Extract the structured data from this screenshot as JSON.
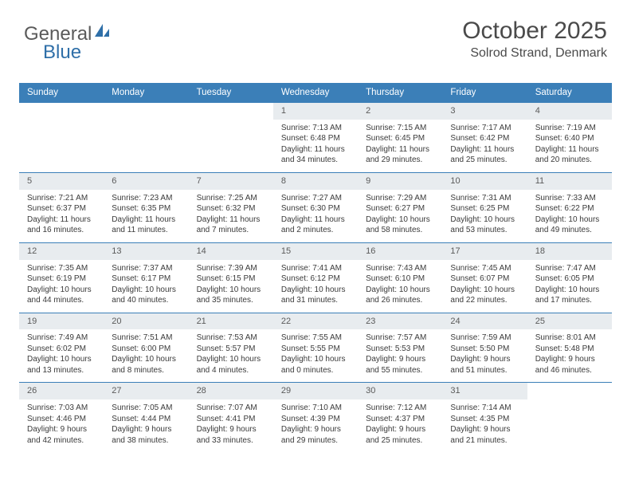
{
  "logo": {
    "text1": "General",
    "text2": "Blue"
  },
  "header": {
    "month": "October 2025",
    "location": "Solrod Strand, Denmark"
  },
  "colors": {
    "header_bg": "#3b7fb8",
    "header_text": "#ffffff",
    "num_bg": "#e8ecef",
    "border": "#3b7fb8",
    "text": "#3a3a3a"
  },
  "dayNames": [
    "Sunday",
    "Monday",
    "Tuesday",
    "Wednesday",
    "Thursday",
    "Friday",
    "Saturday"
  ],
  "weeks": [
    [
      {
        "empty": true
      },
      {
        "empty": true
      },
      {
        "empty": true
      },
      {
        "num": "1",
        "sunrise": "7:13 AM",
        "sunset": "6:48 PM",
        "dl1": "11 hours",
        "dl2": "and 34 minutes."
      },
      {
        "num": "2",
        "sunrise": "7:15 AM",
        "sunset": "6:45 PM",
        "dl1": "11 hours",
        "dl2": "and 29 minutes."
      },
      {
        "num": "3",
        "sunrise": "7:17 AM",
        "sunset": "6:42 PM",
        "dl1": "11 hours",
        "dl2": "and 25 minutes."
      },
      {
        "num": "4",
        "sunrise": "7:19 AM",
        "sunset": "6:40 PM",
        "dl1": "11 hours",
        "dl2": "and 20 minutes."
      }
    ],
    [
      {
        "num": "5",
        "sunrise": "7:21 AM",
        "sunset": "6:37 PM",
        "dl1": "11 hours",
        "dl2": "and 16 minutes."
      },
      {
        "num": "6",
        "sunrise": "7:23 AM",
        "sunset": "6:35 PM",
        "dl1": "11 hours",
        "dl2": "and 11 minutes."
      },
      {
        "num": "7",
        "sunrise": "7:25 AM",
        "sunset": "6:32 PM",
        "dl1": "11 hours",
        "dl2": "and 7 minutes."
      },
      {
        "num": "8",
        "sunrise": "7:27 AM",
        "sunset": "6:30 PM",
        "dl1": "11 hours",
        "dl2": "and 2 minutes."
      },
      {
        "num": "9",
        "sunrise": "7:29 AM",
        "sunset": "6:27 PM",
        "dl1": "10 hours",
        "dl2": "and 58 minutes."
      },
      {
        "num": "10",
        "sunrise": "7:31 AM",
        "sunset": "6:25 PM",
        "dl1": "10 hours",
        "dl2": "and 53 minutes."
      },
      {
        "num": "11",
        "sunrise": "7:33 AM",
        "sunset": "6:22 PM",
        "dl1": "10 hours",
        "dl2": "and 49 minutes."
      }
    ],
    [
      {
        "num": "12",
        "sunrise": "7:35 AM",
        "sunset": "6:19 PM",
        "dl1": "10 hours",
        "dl2": "and 44 minutes."
      },
      {
        "num": "13",
        "sunrise": "7:37 AM",
        "sunset": "6:17 PM",
        "dl1": "10 hours",
        "dl2": "and 40 minutes."
      },
      {
        "num": "14",
        "sunrise": "7:39 AM",
        "sunset": "6:15 PM",
        "dl1": "10 hours",
        "dl2": "and 35 minutes."
      },
      {
        "num": "15",
        "sunrise": "7:41 AM",
        "sunset": "6:12 PM",
        "dl1": "10 hours",
        "dl2": "and 31 minutes."
      },
      {
        "num": "16",
        "sunrise": "7:43 AM",
        "sunset": "6:10 PM",
        "dl1": "10 hours",
        "dl2": "and 26 minutes."
      },
      {
        "num": "17",
        "sunrise": "7:45 AM",
        "sunset": "6:07 PM",
        "dl1": "10 hours",
        "dl2": "and 22 minutes."
      },
      {
        "num": "18",
        "sunrise": "7:47 AM",
        "sunset": "6:05 PM",
        "dl1": "10 hours",
        "dl2": "and 17 minutes."
      }
    ],
    [
      {
        "num": "19",
        "sunrise": "7:49 AM",
        "sunset": "6:02 PM",
        "dl1": "10 hours",
        "dl2": "and 13 minutes."
      },
      {
        "num": "20",
        "sunrise": "7:51 AM",
        "sunset": "6:00 PM",
        "dl1": "10 hours",
        "dl2": "and 8 minutes."
      },
      {
        "num": "21",
        "sunrise": "7:53 AM",
        "sunset": "5:57 PM",
        "dl1": "10 hours",
        "dl2": "and 4 minutes."
      },
      {
        "num": "22",
        "sunrise": "7:55 AM",
        "sunset": "5:55 PM",
        "dl1": "10 hours",
        "dl2": "and 0 minutes."
      },
      {
        "num": "23",
        "sunrise": "7:57 AM",
        "sunset": "5:53 PM",
        "dl1": "9 hours",
        "dl2": "and 55 minutes."
      },
      {
        "num": "24",
        "sunrise": "7:59 AM",
        "sunset": "5:50 PM",
        "dl1": "9 hours",
        "dl2": "and 51 minutes."
      },
      {
        "num": "25",
        "sunrise": "8:01 AM",
        "sunset": "5:48 PM",
        "dl1": "9 hours",
        "dl2": "and 46 minutes."
      }
    ],
    [
      {
        "num": "26",
        "sunrise": "7:03 AM",
        "sunset": "4:46 PM",
        "dl1": "9 hours",
        "dl2": "and 42 minutes."
      },
      {
        "num": "27",
        "sunrise": "7:05 AM",
        "sunset": "4:44 PM",
        "dl1": "9 hours",
        "dl2": "and 38 minutes."
      },
      {
        "num": "28",
        "sunrise": "7:07 AM",
        "sunset": "4:41 PM",
        "dl1": "9 hours",
        "dl2": "and 33 minutes."
      },
      {
        "num": "29",
        "sunrise": "7:10 AM",
        "sunset": "4:39 PM",
        "dl1": "9 hours",
        "dl2": "and 29 minutes."
      },
      {
        "num": "30",
        "sunrise": "7:12 AM",
        "sunset": "4:37 PM",
        "dl1": "9 hours",
        "dl2": "and 25 minutes."
      },
      {
        "num": "31",
        "sunrise": "7:14 AM",
        "sunset": "4:35 PM",
        "dl1": "9 hours",
        "dl2": "and 21 minutes."
      },
      {
        "empty": true
      }
    ]
  ],
  "labels": {
    "sunrise": "Sunrise:",
    "sunset": "Sunset:",
    "daylight": "Daylight:"
  }
}
